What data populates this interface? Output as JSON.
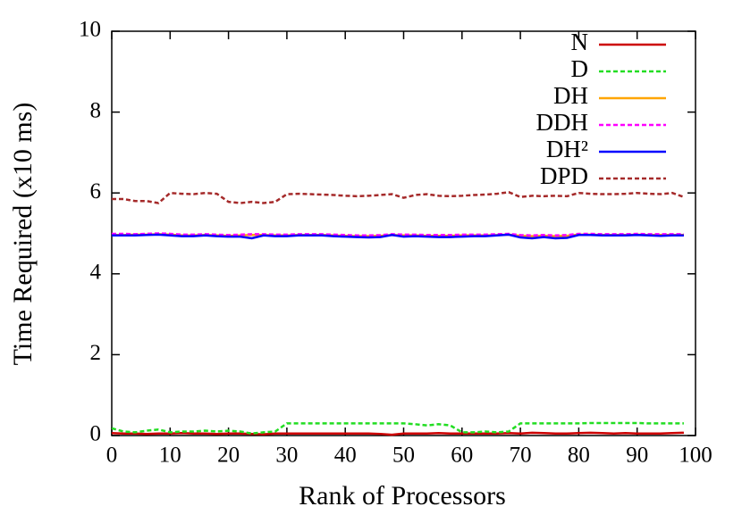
{
  "chart_data": {
    "type": "line",
    "xlabel": "Rank of Processors",
    "ylabel": "Time Required (x10 ms)",
    "xlim": [
      0,
      100
    ],
    "ylim": [
      0,
      10
    ],
    "xticks": [
      0,
      10,
      20,
      30,
      40,
      50,
      60,
      70,
      80,
      90,
      100
    ],
    "yticks": [
      0,
      2,
      4,
      6,
      8,
      10
    ],
    "legend": "top-right",
    "x": [
      0,
      2,
      4,
      6,
      8,
      10,
      12,
      14,
      16,
      18,
      20,
      22,
      24,
      26,
      28,
      30,
      32,
      34,
      36,
      38,
      40,
      42,
      44,
      46,
      48,
      50,
      52,
      54,
      56,
      58,
      60,
      62,
      64,
      66,
      68,
      70,
      72,
      74,
      76,
      78,
      80,
      82,
      84,
      86,
      88,
      90,
      92,
      94,
      96,
      98
    ],
    "series": [
      {
        "name": "N",
        "color": "#cc0000",
        "dashed": false,
        "values": [
          0.06,
          0.05,
          0.05,
          0.04,
          0.05,
          0.05,
          0.06,
          0.05,
          0.05,
          0.04,
          0.05,
          0.05,
          0.04,
          0.03,
          0.05,
          0.05,
          0.05,
          0.05,
          0.05,
          0.05,
          0.05,
          0.05,
          0.05,
          0.04,
          0.02,
          0.05,
          0.05,
          0.05,
          0.06,
          0.05,
          0.05,
          0.05,
          0.05,
          0.05,
          0.06,
          0.05,
          0.07,
          0.06,
          0.05,
          0.05,
          0.06,
          0.07,
          0.06,
          0.05,
          0.06,
          0.05,
          0.05,
          0.05,
          0.06,
          0.07
        ]
      },
      {
        "name": "D",
        "color": "#22dd22",
        "dashed": true,
        "values": [
          0.18,
          0.1,
          0.08,
          0.12,
          0.15,
          0.08,
          0.1,
          0.1,
          0.12,
          0.1,
          0.12,
          0.1,
          0.05,
          0.08,
          0.1,
          0.3,
          0.3,
          0.3,
          0.3,
          0.3,
          0.3,
          0.3,
          0.3,
          0.3,
          0.3,
          0.3,
          0.28,
          0.25,
          0.28,
          0.25,
          0.08,
          0.08,
          0.1,
          0.08,
          0.1,
          0.3,
          0.3,
          0.3,
          0.3,
          0.3,
          0.3,
          0.31,
          0.31,
          0.31,
          0.31,
          0.31,
          0.3,
          0.3,
          0.3,
          0.3
        ]
      },
      {
        "name": "DH",
        "color": "#ffa500",
        "dashed": false,
        "values": [
          4.96,
          4.96,
          4.97,
          4.97,
          4.98,
          4.97,
          4.95,
          4.95,
          4.96,
          4.95,
          4.94,
          4.95,
          4.96,
          4.96,
          4.95,
          4.95,
          4.96,
          4.96,
          4.96,
          4.95,
          4.94,
          4.93,
          4.93,
          4.94,
          4.96,
          4.95,
          4.95,
          4.94,
          4.94,
          4.94,
          4.95,
          4.95,
          4.95,
          4.96,
          4.97,
          4.94,
          4.93,
          4.94,
          4.93,
          4.94,
          4.97,
          4.97,
          4.96,
          4.96,
          4.96,
          4.97,
          4.96,
          4.96,
          4.96,
          4.96
        ]
      },
      {
        "name": "DDH",
        "color": "#ff00ff",
        "dashed": true,
        "values": [
          4.99,
          4.99,
          4.98,
          4.99,
          5.0,
          4.99,
          4.97,
          4.97,
          4.98,
          4.97,
          4.96,
          4.97,
          4.98,
          4.98,
          4.97,
          4.97,
          4.98,
          4.98,
          4.98,
          4.97,
          4.96,
          4.95,
          4.95,
          4.96,
          4.98,
          4.97,
          4.97,
          4.96,
          4.96,
          4.96,
          4.97,
          4.97,
          4.97,
          4.98,
          4.99,
          4.96,
          4.95,
          4.96,
          4.95,
          4.96,
          4.99,
          4.99,
          4.98,
          4.98,
          4.98,
          4.99,
          4.98,
          4.98,
          4.98,
          4.98
        ]
      },
      {
        "name": "DH²",
        "color": "#0000ff",
        "dashed": false,
        "values": [
          4.95,
          4.95,
          4.95,
          4.96,
          4.97,
          4.95,
          4.93,
          4.93,
          4.95,
          4.93,
          4.92,
          4.92,
          4.88,
          4.95,
          4.93,
          4.93,
          4.95,
          4.95,
          4.95,
          4.93,
          4.92,
          4.91,
          4.9,
          4.91,
          4.96,
          4.92,
          4.93,
          4.92,
          4.91,
          4.91,
          4.92,
          4.93,
          4.93,
          4.95,
          4.97,
          4.9,
          4.88,
          4.91,
          4.88,
          4.89,
          4.96,
          4.96,
          4.95,
          4.95,
          4.95,
          4.96,
          4.95,
          4.94,
          4.95,
          4.95
        ]
      },
      {
        "name": "DPD",
        "color": "#a52a2a",
        "dashed": true,
        "values": [
          5.85,
          5.85,
          5.8,
          5.8,
          5.75,
          6.0,
          5.98,
          5.97,
          6.0,
          5.98,
          5.78,
          5.75,
          5.78,
          5.75,
          5.78,
          5.97,
          5.98,
          5.97,
          5.96,
          5.95,
          5.93,
          5.92,
          5.93,
          5.95,
          5.97,
          5.88,
          5.95,
          5.97,
          5.93,
          5.92,
          5.93,
          5.95,
          5.96,
          5.98,
          6.02,
          5.9,
          5.93,
          5.92,
          5.93,
          5.92,
          6.0,
          5.98,
          5.97,
          5.97,
          5.98,
          6.0,
          5.98,
          5.97,
          6.0,
          5.9
        ]
      }
    ]
  }
}
